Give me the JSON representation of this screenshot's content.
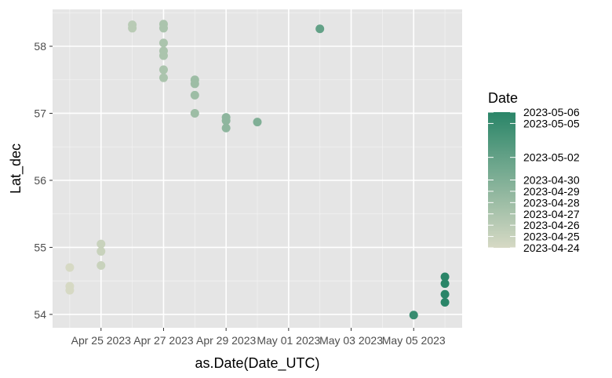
{
  "chart_data": {
    "type": "scatter",
    "xlabel": "as.Date(Date_UTC)",
    "ylabel": "Lat_dec",
    "x_tick_labels": [
      "Apr 25 2023",
      "Apr 27 2023",
      "Apr 29 2023",
      "May 01 2023",
      "May 03 2023",
      "May 05 2023"
    ],
    "x_ticks": [
      "2023-04-25",
      "2023-04-27",
      "2023-04-29",
      "2023-05-01",
      "2023-05-03",
      "2023-05-05"
    ],
    "xlim": [
      "2023-04-23.45",
      "2023-05-06.55"
    ],
    "y_ticks": [
      54,
      55,
      56,
      57,
      58
    ],
    "y_tick_labels": [
      "54",
      "55",
      "56",
      "57",
      "58"
    ],
    "ylim": [
      53.8,
      58.55
    ],
    "grid": true,
    "background": "#e5e5e5",
    "legend": {
      "title": "Date",
      "position": "right",
      "labels": [
        "2023-05-06",
        "2023-05-05",
        "2023-05-02",
        "2023-04-30",
        "2023-04-29",
        "2023-04-28",
        "2023-04-27",
        "2023-04-26",
        "2023-04-25",
        "2023-04-24"
      ],
      "color_low": "#d6d9c4",
      "color_high": "#2a8568"
    },
    "points": [
      {
        "x": "2023-04-24",
        "y": 54.7
      },
      {
        "x": "2023-04-24",
        "y": 54.42
      },
      {
        "x": "2023-04-24",
        "y": 54.36
      },
      {
        "x": "2023-04-25",
        "y": 55.05
      },
      {
        "x": "2023-04-25",
        "y": 54.94
      },
      {
        "x": "2023-04-25",
        "y": 54.73
      },
      {
        "x": "2023-04-26",
        "y": 58.32
      },
      {
        "x": "2023-04-26",
        "y": 58.27
      },
      {
        "x": "2023-04-27",
        "y": 58.33
      },
      {
        "x": "2023-04-27",
        "y": 58.27
      },
      {
        "x": "2023-04-27",
        "y": 58.05
      },
      {
        "x": "2023-04-27",
        "y": 57.93
      },
      {
        "x": "2023-04-27",
        "y": 57.86
      },
      {
        "x": "2023-04-27",
        "y": 57.65
      },
      {
        "x": "2023-04-27",
        "y": 57.53
      },
      {
        "x": "2023-04-28",
        "y": 57.5
      },
      {
        "x": "2023-04-28",
        "y": 57.44
      },
      {
        "x": "2023-04-28",
        "y": 57.27
      },
      {
        "x": "2023-04-28",
        "y": 57.0
      },
      {
        "x": "2023-04-29",
        "y": 56.94
      },
      {
        "x": "2023-04-29",
        "y": 56.89
      },
      {
        "x": "2023-04-29",
        "y": 56.78
      },
      {
        "x": "2023-04-30",
        "y": 56.87
      },
      {
        "x": "2023-05-02",
        "y": 58.26
      },
      {
        "x": "2023-05-05",
        "y": 53.99
      },
      {
        "x": "2023-05-06",
        "y": 54.56
      },
      {
        "x": "2023-05-06",
        "y": 54.46
      },
      {
        "x": "2023-05-06",
        "y": 54.3
      },
      {
        "x": "2023-05-06",
        "y": 54.18
      }
    ]
  }
}
